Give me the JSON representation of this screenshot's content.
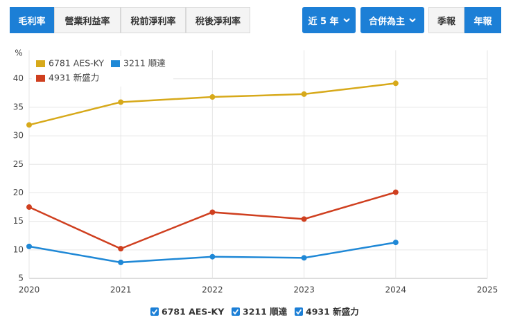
{
  "tabs": [
    "毛利率",
    "營業利益率",
    "稅前淨利率",
    "稅後淨利率"
  ],
  "controls": {
    "range": "近 5 年",
    "basis": "合併為主",
    "period_options": [
      "季報",
      "年報"
    ]
  },
  "chart_data": {
    "type": "line",
    "y_label": "%",
    "x": [
      2020,
      2021,
      2022,
      2023,
      2024
    ],
    "xlim": [
      2020,
      2025
    ],
    "xticks": [
      2020,
      2021,
      2022,
      2023,
      2024,
      2025
    ],
    "ylim": [
      5,
      45
    ],
    "yticks": [
      5,
      10,
      15,
      20,
      25,
      30,
      35,
      40
    ],
    "grid": true,
    "series": [
      {
        "name": "6781 AES-KY",
        "color": "#d7a91a",
        "values": [
          31.9,
          35.9,
          36.8,
          37.3,
          39.2
        ]
      },
      {
        "name": "3211 順達",
        "color": "#1f88d6",
        "values": [
          10.6,
          7.8,
          8.8,
          8.6,
          11.3
        ]
      },
      {
        "name": "4931 新盛力",
        "color": "#cf3f1f",
        "values": [
          17.5,
          10.2,
          16.6,
          15.4,
          20.1
        ]
      }
    ]
  }
}
